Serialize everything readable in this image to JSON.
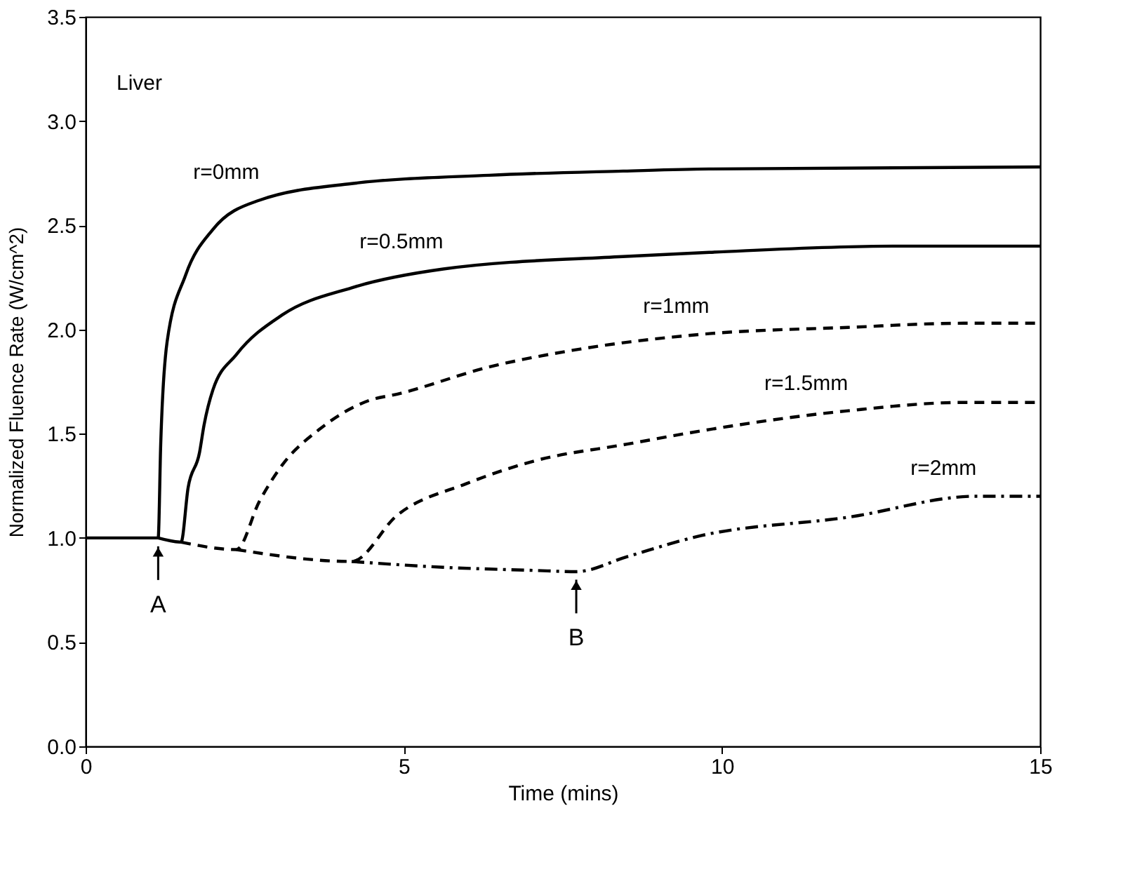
{
  "chart_data": {
    "type": "line",
    "xlabel": "Time (mins)",
    "ylabel": "Normalized Fluence Rate (W/cm^2)",
    "xlim": [
      0,
      15
    ],
    "xticks": [
      0,
      5,
      10,
      15
    ],
    "ylim": [
      0,
      3.5
    ],
    "yticks": [
      {
        "value": 0,
        "label": "0.0"
      },
      0.5,
      {
        "value": 1,
        "label": "1.0"
      },
      1.5,
      {
        "value": 2,
        "label": "2.0"
      },
      2.5,
      {
        "value": 3,
        "label": "3.0"
      },
      3.5
    ],
    "grid": false,
    "marker": "none",
    "annotations": [
      "Liver",
      {
        "text": "A",
        "x": 1.14,
        "y": 1.0
      },
      {
        "text": "B",
        "x": 7.71,
        "y": 0.84
      }
    ],
    "series": [
      {
        "name": "r=0mm",
        "color": "#000000",
        "line_style": "solid",
        "x": [
          0,
          0.6,
          1.14,
          1.18,
          1.28,
          1.57,
          2.0,
          2.73,
          4.18,
          6.34,
          8.45,
          9.8,
          15
        ],
        "values": [
          1.0,
          1.0,
          1.0,
          1.45,
          1.94,
          2.26,
          2.48,
          2.62,
          2.7,
          2.74,
          2.76,
          2.77,
          2.78
        ]
      },
      {
        "name": "r=0.5mm",
        "color": "#000000",
        "line_style": "solid",
        "x": [
          1.14,
          1.5,
          1.61,
          1.79,
          1.86,
          2.0,
          2.37,
          3.09,
          4.18,
          5.62,
          8.44,
          9.8,
          12.7,
          15
        ],
        "values": [
          1.0,
          0.98,
          1.24,
          1.41,
          1.54,
          1.71,
          1.88,
          2.07,
          2.2,
          2.29,
          2.35,
          2.37,
          2.4,
          2.4
        ]
      },
      {
        "name": "r=1mm",
        "color": "#000000",
        "line_style": "dashed",
        "x": [
          1.5,
          2.37,
          2.73,
          3.09,
          3.67,
          4.46,
          4.9,
          6.34,
          7.65,
          9.8,
          11.98,
          13.8,
          15
        ],
        "values": [
          0.98,
          0.944,
          1.175,
          1.35,
          1.52,
          1.66,
          1.69,
          1.82,
          1.9,
          1.98,
          2.01,
          2.03,
          2.03
        ]
      },
      {
        "name": "r=1.5mm",
        "color": "#000000",
        "line_style": "dashed",
        "x": [
          2.37,
          4.18,
          4.9,
          5.98,
          7.06,
          8.51,
          9.8,
          11.98,
          13.8,
          15
        ],
        "values": [
          0.944,
          0.887,
          1.11,
          1.26,
          1.37,
          1.45,
          1.52,
          1.61,
          1.65,
          1.65
        ]
      },
      {
        "name": "r=2mm",
        "color": "#000000",
        "line_style": "dashdot",
        "x": [
          4.18,
          5.62,
          7.06,
          7.71,
          8.51,
          9.6,
          12.0,
          14.0,
          15
        ],
        "values": [
          0.887,
          0.859,
          0.844,
          0.838,
          0.91,
          1.006,
          1.1,
          1.2,
          1.2
        ]
      }
    ]
  }
}
